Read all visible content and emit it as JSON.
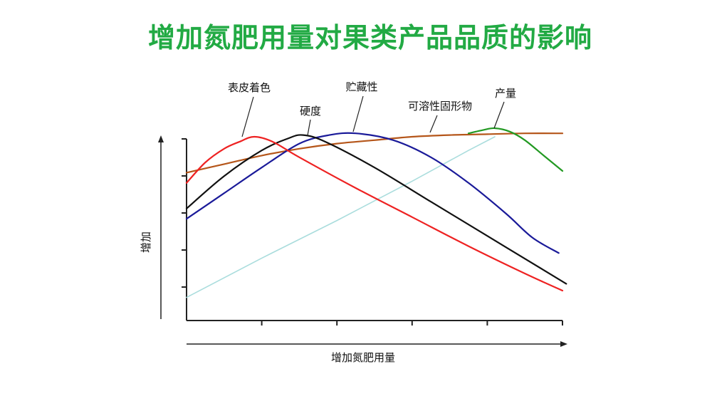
{
  "chart_data": {
    "type": "line",
    "title": "增加氮肥用量对果类产品品质的影响",
    "xlabel": "增加氮肥用量",
    "ylabel": "增加",
    "x_ticks": 5,
    "y_ticks": 5,
    "xlim": [
      0,
      100
    ],
    "ylim": [
      0,
      100
    ],
    "grid": false,
    "legend": "none",
    "series": [
      {
        "name": "表皮着色",
        "color": "#ee2222",
        "label_anchor": [
          18,
          100
        ],
        "points": [
          [
            0,
            73
          ],
          [
            5,
            85
          ],
          [
            10,
            93
          ],
          [
            14,
            97
          ],
          [
            18,
            100
          ],
          [
            23,
            97
          ],
          [
            30,
            88
          ],
          [
            45,
            70
          ],
          [
            60,
            53
          ],
          [
            75,
            36
          ],
          [
            90,
            20
          ],
          [
            100,
            10
          ]
        ]
      },
      {
        "name": "硬度",
        "color": "#111111",
        "label_anchor": [
          30,
          100
        ],
        "points": [
          [
            0,
            58
          ],
          [
            10,
            77
          ],
          [
            20,
            92
          ],
          [
            27,
            99
          ],
          [
            31,
            101
          ],
          [
            37,
            97
          ],
          [
            50,
            82
          ],
          [
            65,
            62
          ],
          [
            80,
            42
          ],
          [
            95,
            22
          ],
          [
            101,
            14
          ]
        ]
      },
      {
        "name": "贮藏性",
        "color": "#1a1a99",
        "label_anchor": [
          44,
          101
        ],
        "points": [
          [
            0,
            52
          ],
          [
            10,
            67
          ],
          [
            20,
            82
          ],
          [
            30,
            96
          ],
          [
            38,
            101
          ],
          [
            45,
            102
          ],
          [
            55,
            98
          ],
          [
            65,
            88
          ],
          [
            75,
            73
          ],
          [
            85,
            55
          ],
          [
            92,
            41
          ],
          [
            99,
            32
          ]
        ]
      },
      {
        "name": "可溶性固形物",
        "color": "#b5561a",
        "label_anchor": [
          66,
          104
        ],
        "points": [
          [
            0,
            79
          ],
          [
            10,
            84
          ],
          [
            20,
            89
          ],
          [
            30,
            93
          ],
          [
            40,
            96
          ],
          [
            50,
            98
          ],
          [
            60,
            100
          ],
          [
            70,
            101
          ],
          [
            80,
            101.5
          ],
          [
            90,
            102
          ],
          [
            100,
            102
          ]
        ]
      },
      {
        "name": "产量",
        "color": "#aadddd",
        "points": [
          [
            0,
            6
          ],
          [
            20,
            29
          ],
          [
            40,
            51
          ],
          [
            60,
            74
          ],
          [
            75,
            92
          ],
          [
            82,
            100
          ]
        ]
      },
      {
        "name": "产量_peak",
        "color": "#229922",
        "label_anchor": [
          83,
          106
        ],
        "points": [
          [
            75,
            102
          ],
          [
            79,
            104
          ],
          [
            82,
            105
          ],
          [
            86,
            103
          ],
          [
            90,
            98
          ],
          [
            95,
            89
          ],
          [
            100,
            80
          ]
        ]
      }
    ]
  }
}
